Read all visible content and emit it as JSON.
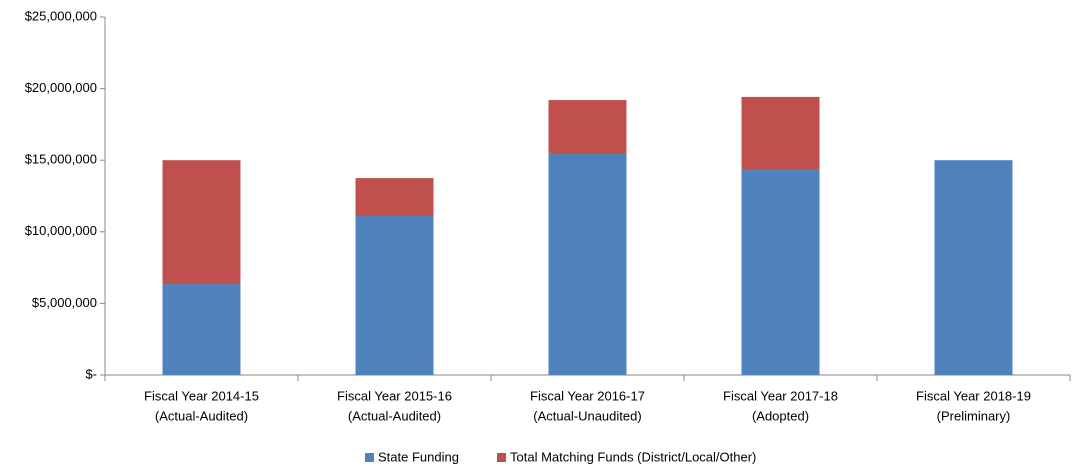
{
  "chart_data": {
    "type": "stacked_bar",
    "categories": [
      [
        "Fiscal Year 2014-15",
        "(Actual-Audited)"
      ],
      [
        "Fiscal Year 2015-16",
        "(Actual-Audited)"
      ],
      [
        "Fiscal Year 2016-17",
        "(Actual-Unaudited)"
      ],
      [
        "Fiscal Year 2017-18",
        "(Adopted)"
      ],
      [
        "Fiscal Year 2018-19",
        "(Preliminary)"
      ]
    ],
    "series": [
      {
        "name": "State Funding",
        "color": "#4f81bd",
        "values": [
          6350000,
          11100000,
          15430000,
          14320000,
          15000000
        ]
      },
      {
        "name": "Total Matching Funds (District/Local/Other)",
        "color": "#c0504d",
        "values": [
          8650000,
          2650000,
          3770000,
          5100000,
          0
        ]
      }
    ],
    "ylim": [
      0,
      25000000
    ],
    "yticks": [
      {
        "value": 0,
        "label": "$-"
      },
      {
        "value": 5000000,
        "label": "$5,000,000"
      },
      {
        "value": 10000000,
        "label": "$10,000,000"
      },
      {
        "value": 15000000,
        "label": "$15,000,000"
      },
      {
        "value": 20000000,
        "label": "$20,000,000"
      },
      {
        "value": 25000000,
        "label": "$25,000,000"
      }
    ],
    "grid": false,
    "legend": "bottom"
  }
}
